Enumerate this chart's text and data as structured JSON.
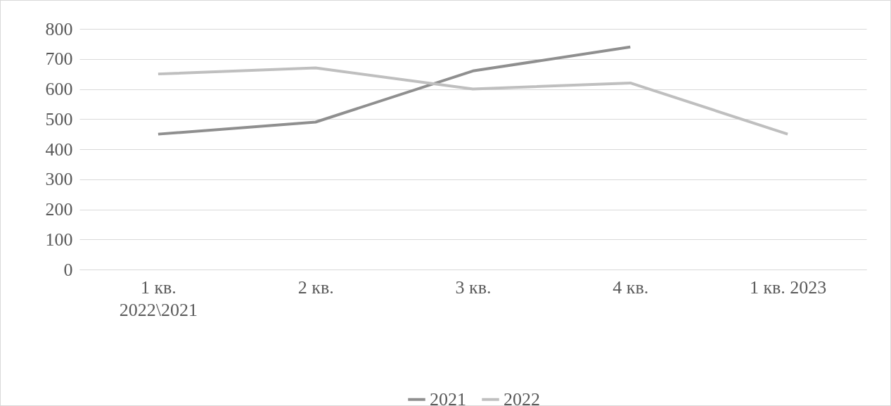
{
  "chart_data": {
    "type": "line",
    "categories": [
      "1 кв. 2022\\2021",
      "2 кв.",
      "3 кв.",
      "4 кв.",
      "1 кв. 2023"
    ],
    "series": [
      {
        "name": "2021",
        "color": "#8f8f8f",
        "values": [
          450,
          490,
          660,
          740,
          null
        ]
      },
      {
        "name": "2022",
        "color": "#bfbfbf",
        "values": [
          650,
          670,
          600,
          620,
          450
        ]
      }
    ],
    "ylim": [
      0,
      800
    ],
    "yticks": [
      0,
      100,
      200,
      300,
      400,
      500,
      600,
      700,
      800
    ],
    "grid": "y",
    "legend": "bottom",
    "marker": "none",
    "line_style": "solid"
  }
}
